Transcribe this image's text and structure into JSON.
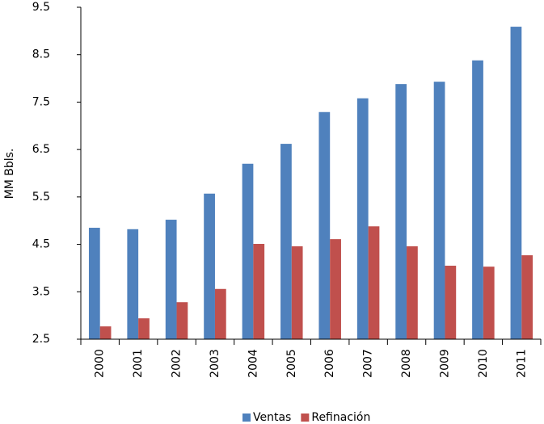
{
  "chart_data": {
    "type": "bar",
    "y_label": "MM Bbls.",
    "categories": [
      "2000",
      "2001",
      "2002",
      "2003",
      "2004",
      "2005",
      "2006",
      "2007",
      "2008",
      "2009",
      "2010",
      "2011"
    ],
    "series": [
      {
        "name": "Ventas",
        "color": "#4f81bd",
        "values": [
          4.85,
          4.82,
          5.02,
          5.57,
          6.2,
          6.62,
          7.29,
          7.58,
          7.88,
          7.93,
          8.38,
          9.09
        ]
      },
      {
        "name": "Refinación",
        "color": "#c0504d",
        "values": [
          2.77,
          2.94,
          3.28,
          3.56,
          4.51,
          4.46,
          4.61,
          4.88,
          4.46,
          4.05,
          4.03,
          4.27
        ]
      }
    ],
    "ylim": [
      2.5,
      9.5
    ],
    "yticks": [
      2.5,
      3.5,
      4.5,
      5.5,
      6.5,
      7.5,
      8.5,
      9.5
    ],
    "legend": "bottom"
  }
}
